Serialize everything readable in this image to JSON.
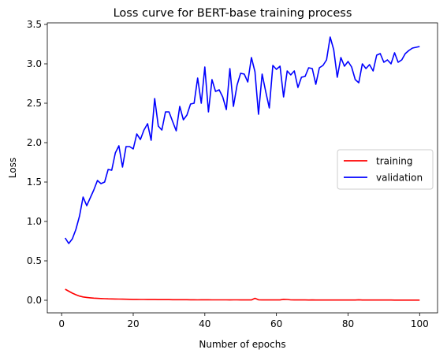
{
  "chart_data": {
    "type": "line",
    "title": "Loss curve for BERT-base training process",
    "xlabel": "Number of epochs",
    "ylabel": "Loss",
    "xlim": [
      -4.0,
      105.0
    ],
    "ylim": [
      -0.16,
      3.52
    ],
    "x_ticks": [
      0,
      20,
      40,
      60,
      80,
      100
    ],
    "x_tick_labels": [
      "0",
      "20",
      "40",
      "60",
      "80",
      "100"
    ],
    "y_ticks": [
      0.0,
      0.5,
      1.0,
      1.5,
      2.0,
      2.5,
      3.0,
      3.5
    ],
    "y_tick_labels": [
      "0.0",
      "0.5",
      "1.0",
      "1.5",
      "2.0",
      "2.5",
      "3.0",
      "3.5"
    ],
    "grid": false,
    "legend_position": "center-right",
    "series": [
      {
        "name": "training",
        "color": "#ff0000",
        "x": [
          1,
          2,
          3,
          4,
          5,
          6,
          7,
          8,
          9,
          10,
          11,
          12,
          13,
          14,
          15,
          16,
          17,
          18,
          19,
          20,
          21,
          22,
          23,
          24,
          25,
          26,
          27,
          28,
          29,
          30,
          31,
          32,
          33,
          34,
          35,
          36,
          37,
          38,
          39,
          40,
          41,
          42,
          43,
          44,
          45,
          46,
          47,
          48,
          49,
          50,
          51,
          52,
          53,
          54,
          55,
          56,
          57,
          58,
          59,
          60,
          61,
          62,
          63,
          64,
          65,
          66,
          67,
          68,
          69,
          70,
          71,
          72,
          73,
          74,
          75,
          76,
          77,
          78,
          79,
          80,
          81,
          82,
          83,
          84,
          85,
          86,
          87,
          88,
          89,
          90,
          91,
          92,
          93,
          94,
          95,
          96,
          97,
          98,
          99,
          100
        ],
        "values": [
          0.14,
          0.115,
          0.09,
          0.07,
          0.053,
          0.042,
          0.036,
          0.031,
          0.027,
          0.024,
          0.022,
          0.02,
          0.018,
          0.017,
          0.016,
          0.015,
          0.014,
          0.013,
          0.012,
          0.011,
          0.011,
          0.01,
          0.01,
          0.009,
          0.009,
          0.009,
          0.008,
          0.008,
          0.008,
          0.008,
          0.007,
          0.007,
          0.007,
          0.007,
          0.007,
          0.006,
          0.006,
          0.005,
          0.006,
          0.006,
          0.006,
          0.005,
          0.005,
          0.005,
          0.005,
          0.005,
          0.004,
          0.005,
          0.005,
          0.004,
          0.004,
          0.004,
          0.004,
          0.025,
          0.006,
          0.004,
          0.004,
          0.004,
          0.004,
          0.004,
          0.004,
          0.012,
          0.01,
          0.005,
          0.004,
          0.004,
          0.004,
          0.004,
          0.003,
          0.004,
          0.003,
          0.003,
          0.003,
          0.003,
          0.003,
          0.003,
          0.003,
          0.003,
          0.003,
          0.003,
          0.003,
          0.003,
          0.006,
          0.003,
          0.003,
          0.003,
          0.003,
          0.003,
          0.003,
          0.003,
          0.003,
          0.003,
          0.002,
          0.002,
          0.002,
          0.002,
          0.002,
          0.002,
          0.002,
          0.002
        ]
      },
      {
        "name": "validation",
        "color": "#0000ff",
        "x": [
          1,
          2,
          3,
          4,
          5,
          6,
          7,
          8,
          9,
          10,
          11,
          12,
          13,
          14,
          15,
          16,
          17,
          18,
          19,
          20,
          21,
          22,
          23,
          24,
          25,
          26,
          27,
          28,
          29,
          30,
          31,
          32,
          33,
          34,
          35,
          36,
          37,
          38,
          39,
          40,
          41,
          42,
          43,
          44,
          45,
          46,
          47,
          48,
          49,
          50,
          51,
          52,
          53,
          54,
          55,
          56,
          57,
          58,
          59,
          60,
          61,
          62,
          63,
          64,
          65,
          66,
          67,
          68,
          69,
          70,
          71,
          72,
          73,
          74,
          75,
          76,
          77,
          78,
          79,
          80,
          81,
          82,
          83,
          84,
          85,
          86,
          87,
          88,
          89,
          90,
          91,
          92,
          93,
          94,
          95,
          96,
          97,
          98,
          99,
          100
        ],
        "values": [
          0.79,
          0.72,
          0.78,
          0.9,
          1.07,
          1.31,
          1.2,
          1.3,
          1.4,
          1.52,
          1.48,
          1.5,
          1.66,
          1.65,
          1.87,
          1.96,
          1.69,
          1.95,
          1.95,
          1.92,
          2.11,
          2.04,
          2.16,
          2.24,
          2.03,
          2.56,
          2.21,
          2.16,
          2.39,
          2.39,
          2.27,
          2.15,
          2.46,
          2.29,
          2.35,
          2.49,
          2.5,
          2.82,
          2.5,
          2.96,
          2.39,
          2.8,
          2.65,
          2.67,
          2.58,
          2.42,
          2.94,
          2.46,
          2.73,
          2.88,
          2.87,
          2.77,
          3.08,
          2.9,
          2.36,
          2.87,
          2.65,
          2.44,
          2.98,
          2.93,
          2.97,
          2.58,
          2.91,
          2.86,
          2.91,
          2.7,
          2.83,
          2.84,
          2.95,
          2.94,
          2.74,
          2.95,
          2.98,
          3.05,
          3.34,
          3.18,
          2.83,
          3.08,
          2.97,
          3.03,
          2.96,
          2.8,
          2.76,
          3.0,
          2.94,
          2.99,
          2.91,
          3.11,
          3.13,
          3.02,
          3.05,
          3.0,
          3.14,
          3.02,
          3.05,
          3.13,
          3.17,
          3.2,
          3.21,
          3.22
        ]
      }
    ]
  }
}
